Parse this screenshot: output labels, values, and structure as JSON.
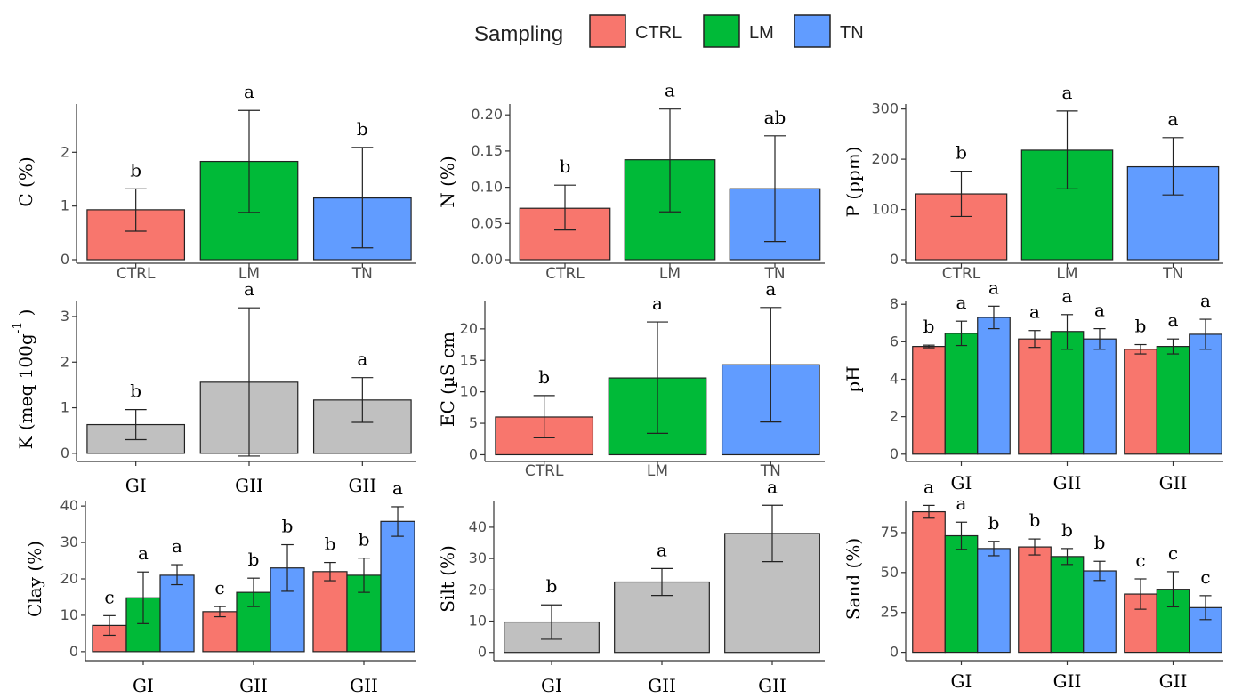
{
  "legend": {
    "title": "Sampling",
    "items": [
      {
        "label": "CTRL",
        "color": "#F8766D"
      },
      {
        "label": "LM",
        "color": "#00BA38"
      },
      {
        "label": "TN",
        "color": "#619CFF"
      }
    ]
  },
  "colors": {
    "CTRL": "#F8766D",
    "LM": "#00BA38",
    "TN": "#619CFF",
    "gray": "#C0C0C0"
  },
  "chart_data": [
    {
      "type": "bar",
      "ylabel": "C (%)",
      "ylim": [
        0,
        2.9
      ],
      "yticks": [
        0,
        1,
        2
      ],
      "categories": [
        "CTRL",
        "LM",
        "TN"
      ],
      "cat_style": "sans",
      "values": [
        0.93,
        1.83,
        1.15
      ],
      "errors": [
        [
          0.53,
          1.32
        ],
        [
          0.88,
          2.78
        ],
        [
          0.22,
          2.09
        ]
      ],
      "letters": [
        "b",
        "a",
        "b"
      ],
      "colors": [
        "CTRL",
        "LM",
        "TN"
      ]
    },
    {
      "type": "bar",
      "ylabel": "N (%)",
      "ylim": [
        0,
        0.215
      ],
      "yticks": [
        0.0,
        0.05,
        0.1,
        0.15,
        0.2
      ],
      "tick_format": "2",
      "categories": [
        "CTRL",
        "LM",
        "TN"
      ],
      "cat_style": "sans",
      "values": [
        0.071,
        0.138,
        0.098
      ],
      "errors": [
        [
          0.041,
          0.103
        ],
        [
          0.066,
          0.208
        ],
        [
          0.025,
          0.171
        ]
      ],
      "letters": [
        "b",
        "a",
        "ab"
      ],
      "colors": [
        "CTRL",
        "LM",
        "TN"
      ]
    },
    {
      "type": "bar",
      "ylabel": "P (ppm)",
      "ylim": [
        0,
        310
      ],
      "yticks": [
        0,
        100,
        200,
        300
      ],
      "categories": [
        "CTRL",
        "LM",
        "TN"
      ],
      "cat_style": "sans",
      "values": [
        131,
        218,
        185
      ],
      "errors": [
        [
          86,
          176
        ],
        [
          141,
          296
        ],
        [
          129,
          243
        ]
      ],
      "letters": [
        "b",
        "a",
        "a"
      ],
      "colors": [
        "CTRL",
        "LM",
        "TN"
      ]
    },
    {
      "type": "bar",
      "ylabel": "K (meq 100g",
      "ylabel_sup": "-1",
      "ylabel_close": ")",
      "ylim": [
        -0.1,
        3.35
      ],
      "yticks": [
        0,
        1,
        2,
        3
      ],
      "categories": [
        "GI",
        "GII",
        "GII"
      ],
      "cat_style": "serif",
      "values": [
        0.63,
        1.56,
        1.17
      ],
      "errors": [
        [
          0.3,
          0.96
        ],
        [
          -0.06,
          3.19
        ],
        [
          0.68,
          1.66
        ]
      ],
      "letters": [
        "b",
        "a",
        "a"
      ],
      "colors": [
        "gray",
        "gray",
        "gray"
      ]
    },
    {
      "type": "bar",
      "ylabel": "EC (µS cm",
      "ylim": [
        -0.5,
        24.5
      ],
      "yticks": [
        0,
        5,
        10,
        15,
        20
      ],
      "categories": [
        "CTRL",
        "LM",
        "TN"
      ],
      "cat_style": "sans",
      "values": [
        6.0,
        12.2,
        14.3
      ],
      "errors": [
        [
          2.7,
          9.4
        ],
        [
          3.4,
          21.1
        ],
        [
          5.2,
          23.4
        ]
      ],
      "letters": [
        "b",
        "a",
        "a"
      ],
      "colors": [
        "CTRL",
        "LM",
        "TN"
      ]
    },
    {
      "type": "grouped-bar",
      "ylabel": "pH",
      "ylim": [
        -0.2,
        8.2
      ],
      "yticks": [
        0,
        2,
        4,
        6,
        8
      ],
      "categories": [
        "GI",
        "GII",
        "GII"
      ],
      "cat_style": "serif",
      "series": [
        {
          "key": "CTRL",
          "values": [
            5.75,
            6.15,
            5.6
          ],
          "errors": [
            [
              5.68,
              5.82
            ],
            [
              5.7,
              6.6
            ],
            [
              5.35,
              5.85
            ]
          ],
          "letters": [
            "b",
            "a",
            "b"
          ]
        },
        {
          "key": "LM",
          "values": [
            6.45,
            6.55,
            5.75
          ],
          "errors": [
            [
              5.8,
              7.1
            ],
            [
              5.6,
              7.45
            ],
            [
              5.35,
              6.15
            ]
          ],
          "letters": [
            "a",
            "a",
            "a"
          ]
        },
        {
          "key": "TN",
          "values": [
            7.3,
            6.15,
            6.4
          ],
          "errors": [
            [
              6.7,
              7.9
            ],
            [
              5.6,
              6.7
            ],
            [
              5.6,
              7.2
            ]
          ],
          "letters": [
            "a",
            "a",
            "a"
          ]
        }
      ]
    },
    {
      "type": "grouped-bar",
      "ylabel": "Clay (%)",
      "ylim": [
        -1.5,
        41.5
      ],
      "yticks": [
        0,
        10,
        20,
        30,
        40
      ],
      "categories": [
        "GI",
        "GII",
        "GII"
      ],
      "cat_style": "serif",
      "series": [
        {
          "key": "CTRL",
          "values": [
            7.2,
            11.0,
            22.0
          ],
          "errors": [
            [
              4.5,
              9.9
            ],
            [
              9.6,
              12.4
            ],
            [
              19.5,
              24.5
            ]
          ],
          "letters": [
            "c",
            "c",
            "b"
          ]
        },
        {
          "key": "LM",
          "values": [
            14.8,
            16.3,
            21.0
          ],
          "errors": [
            [
              7.7,
              21.9
            ],
            [
              12.4,
              20.2
            ],
            [
              16.3,
              25.7
            ]
          ],
          "letters": [
            "a",
            "b",
            "b"
          ]
        },
        {
          "key": "TN",
          "values": [
            21.0,
            23.0,
            35.8
          ],
          "errors": [
            [
              18.4,
              23.9
            ],
            [
              16.6,
              29.4
            ],
            [
              31.7,
              39.8
            ]
          ],
          "letters": [
            "a",
            "b",
            "a"
          ]
        }
      ]
    },
    {
      "type": "bar",
      "ylabel": "Silt (%)",
      "ylim": [
        -1.5,
        48.5
      ],
      "yticks": [
        0,
        10,
        20,
        30,
        40
      ],
      "categories": [
        "GI",
        "GII",
        "GII"
      ],
      "cat_style": "serif",
      "values": [
        9.7,
        22.5,
        38.0
      ],
      "errors": [
        [
          4.2,
          15.2
        ],
        [
          18.2,
          26.8
        ],
        [
          29.0,
          47.0
        ]
      ],
      "letters": [
        "b",
        "a",
        "a"
      ],
      "colors": [
        "gray",
        "gray",
        "gray"
      ]
    },
    {
      "type": "grouped-bar",
      "ylabel": "Sand (%)",
      "ylim": [
        -3,
        95
      ],
      "yticks": [
        0,
        25,
        50,
        75
      ],
      "categories": [
        "GI",
        "GII",
        "GII"
      ],
      "cat_style": "serif",
      "series": [
        {
          "key": "CTRL",
          "values": [
            88.0,
            66.0,
            36.5
          ],
          "errors": [
            [
              84.0,
              92.0
            ],
            [
              61.0,
              71.0
            ],
            [
              27.0,
              46.0
            ]
          ],
          "letters": [
            "a",
            "b",
            "c"
          ]
        },
        {
          "key": "LM",
          "values": [
            73.0,
            60.0,
            39.5
          ],
          "errors": [
            [
              64.5,
              81.5
            ],
            [
              55.0,
              65.0
            ],
            [
              28.5,
              50.5
            ]
          ],
          "letters": [
            "a",
            "b",
            "c"
          ]
        },
        {
          "key": "TN",
          "values": [
            65.0,
            51.0,
            28.0
          ],
          "errors": [
            [
              60.5,
              69.5
            ],
            [
              45.0,
              57.0
            ],
            [
              20.5,
              35.5
            ]
          ],
          "letters": [
            "b",
            "b",
            "c"
          ]
        }
      ]
    }
  ]
}
